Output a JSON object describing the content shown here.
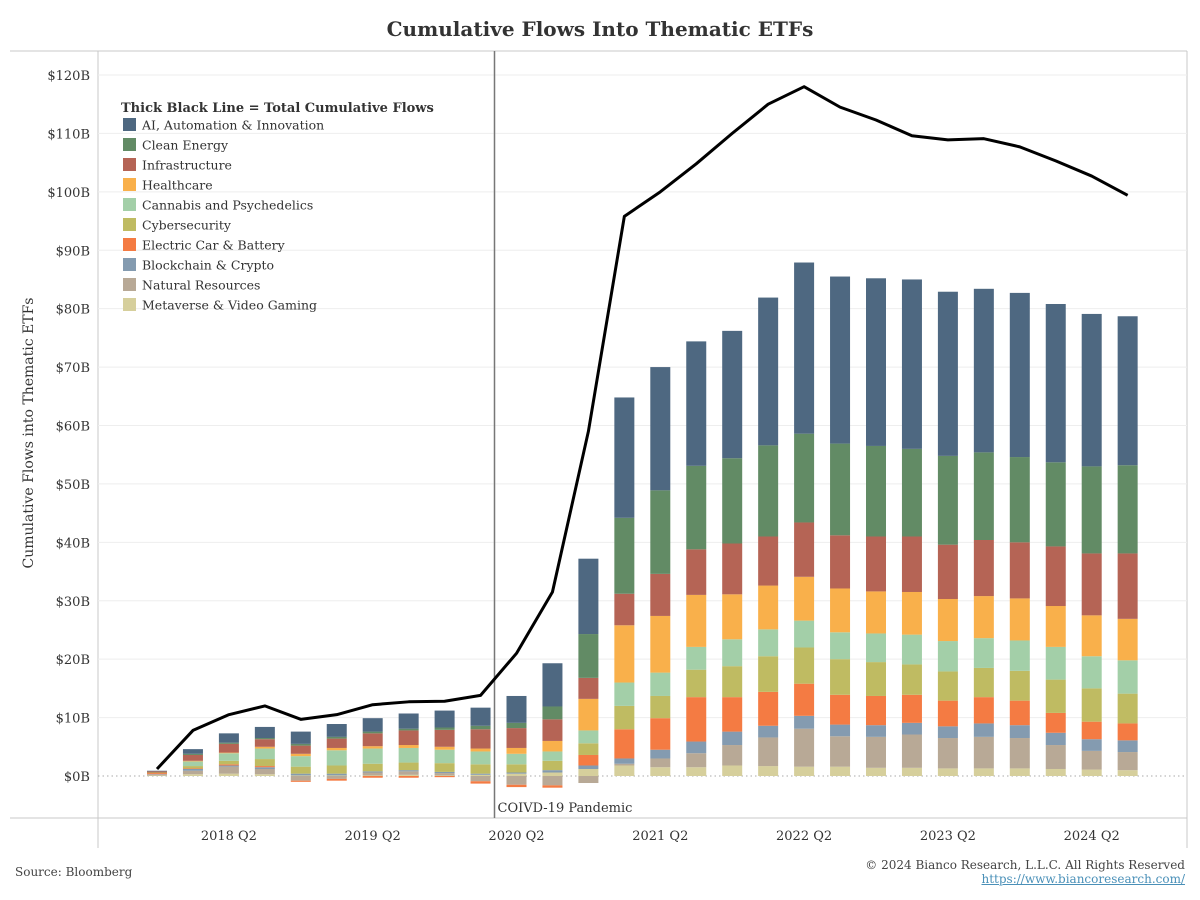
{
  "chart_data": {
    "type": "bar",
    "stacked": true,
    "title": "Cumulative Flows Into Thematic ETFs",
    "ylabel": "Cumulative Flows into Thematic ETFs",
    "xlabel": "",
    "ylim": [
      -7,
      120
    ],
    "yticks": [
      0,
      10,
      20,
      30,
      40,
      50,
      60,
      70,
      80,
      90,
      100,
      110,
      120
    ],
    "ytick_labels": [
      "$0B",
      "$10B",
      "$20B",
      "$30B",
      "$40B",
      "$50B",
      "$60B",
      "$70B",
      "$80B",
      "$90B",
      "$100B",
      "$110B",
      "$120B"
    ],
    "xtick_labels": [
      {
        "label": "2018 Q2",
        "index": 2
      },
      {
        "label": "2019 Q2",
        "index": 6
      },
      {
        "label": "2020 Q2",
        "index": 10
      },
      {
        "label": "2021 Q2",
        "index": 14
      },
      {
        "label": "2022 Q2",
        "index": 18
      },
      {
        "label": "2023 Q2",
        "index": 22
      },
      {
        "label": "2024 Q2",
        "index": 26
      }
    ],
    "categories": [
      "2017 Q4",
      "2018 Q1",
      "2018 Q2",
      "2018 Q3",
      "2018 Q4",
      "2019 Q1",
      "2019 Q2",
      "2019 Q3",
      "2019 Q4",
      "2020 Q1",
      "2020 Q2",
      "2020 Q3",
      "2020 Q4",
      "2021 Q1",
      "2021 Q2",
      "2021 Q3",
      "2021 Q4",
      "2022 Q1",
      "2022 Q2",
      "2022 Q3",
      "2022 Q4",
      "2023 Q1",
      "2023 Q2",
      "2023 Q3",
      "2023 Q4",
      "2024 Q1",
      "2024 Q2",
      "2024 Q3"
    ],
    "legend_title": "Thick Black Line = Total Cumulative Flows",
    "legend_position": "top-left",
    "series": [
      {
        "name": "Metaverse & Video Gaming",
        "color": "#d6cf9c",
        "values": [
          0.1,
          0.3,
          0.4,
          0.3,
          0.1,
          0.1,
          0.1,
          0.2,
          0.1,
          0.2,
          0.4,
          0.6,
          1.2,
          1.8,
          1.5,
          1.5,
          1.8,
          1.7,
          1.6,
          1.6,
          1.4,
          1.4,
          1.3,
          1.3,
          1.3,
          1.2,
          1.1,
          1.0
        ]
      },
      {
        "name": "Natural Resources",
        "color": "#b8a996",
        "values": [
          0.1,
          0.6,
          1.2,
          0.9,
          -0.8,
          -0.5,
          0.5,
          0.6,
          0.4,
          -0.9,
          -1.5,
          -1.6,
          -1.2,
          0.3,
          1.5,
          2.4,
          3.5,
          4.9,
          6.5,
          5.2,
          5.3,
          5.7,
          5.2,
          5.4,
          5.2,
          4.1,
          3.2,
          3.1
        ]
      },
      {
        "name": "Blockchain & Crypto",
        "color": "#849bb0",
        "values": [
          0.1,
          0.3,
          0.2,
          0.3,
          0.3,
          0.3,
          0.2,
          0.2,
          0.2,
          0.2,
          0.2,
          0.4,
          0.6,
          0.9,
          1.5,
          2.0,
          2.3,
          2.0,
          2.2,
          2.0,
          2.0,
          2.0,
          2.0,
          2.3,
          2.2,
          2.1,
          2.0,
          2.0
        ]
      },
      {
        "name": "Electric Car & Battery",
        "color": "#f47b43",
        "values": [
          0.2,
          0.1,
          0.2,
          0.2,
          -0.2,
          -0.3,
          -0.3,
          -0.3,
          -0.2,
          -0.4,
          -0.4,
          -0.4,
          1.8,
          5.0,
          5.4,
          7.6,
          5.9,
          5.8,
          5.5,
          5.1,
          5.0,
          4.8,
          4.4,
          4.5,
          4.2,
          3.4,
          3.0,
          2.9
        ]
      },
      {
        "name": "Cybersecurity",
        "color": "#bfbb62",
        "values": [
          0.1,
          0.4,
          0.6,
          1.2,
          1.2,
          1.4,
          1.3,
          1.3,
          1.5,
          1.6,
          1.4,
          1.6,
          2.0,
          4.0,
          3.8,
          4.7,
          5.3,
          6.1,
          6.2,
          6.1,
          5.8,
          5.2,
          5.0,
          5.0,
          5.1,
          5.7,
          5.7,
          5.1
        ]
      },
      {
        "name": "Cannabis and Psychedelics",
        "color": "#a3cfa8",
        "values": [
          0,
          0.8,
          1.3,
          1.8,
          1.8,
          2.6,
          2.6,
          2.5,
          2.3,
          2.2,
          1.8,
          1.6,
          2.2,
          4.0,
          4.0,
          3.9,
          4.6,
          4.6,
          4.6,
          4.6,
          4.9,
          5.1,
          5.2,
          5.1,
          5.2,
          5.6,
          5.5,
          5.7
        ]
      },
      {
        "name": "Healthcare",
        "color": "#f9b04b",
        "values": [
          0,
          0.1,
          0.1,
          0.3,
          0.4,
          0.4,
          0.4,
          0.5,
          0.5,
          0.5,
          1.0,
          1.8,
          5.4,
          9.8,
          9.7,
          8.9,
          7.7,
          7.5,
          7.5,
          7.5,
          7.2,
          7.3,
          7.2,
          7.2,
          7.2,
          7.0,
          7.0,
          7.1
        ]
      },
      {
        "name": "Infrastructure",
        "color": "#b56455",
        "values": [
          0.2,
          1.0,
          1.5,
          1.3,
          1.4,
          1.6,
          2.2,
          2.5,
          2.9,
          3.3,
          3.4,
          3.7,
          3.6,
          5.4,
          7.2,
          7.8,
          8.7,
          8.4,
          9.3,
          9.1,
          9.4,
          9.5,
          9.3,
          9.6,
          9.6,
          10.2,
          10.6,
          11.2
        ]
      },
      {
        "name": "Clean Energy",
        "color": "#628b65",
        "values": [
          0,
          0.2,
          0.2,
          0.2,
          0.3,
          0.3,
          0.3,
          0.3,
          0.4,
          0.6,
          0.9,
          2.2,
          7.5,
          13.0,
          14.3,
          14.3,
          14.6,
          15.6,
          15.2,
          15.7,
          15.5,
          15.0,
          15.2,
          15.0,
          14.6,
          14.4,
          14.9,
          15.1
        ]
      },
      {
        "name": "AI, Automation & Innovation",
        "color": "#4e6881",
        "values": [
          0.1,
          0.8,
          1.6,
          1.9,
          2.1,
          2.2,
          2.3,
          2.6,
          2.9,
          3.1,
          4.6,
          7.4,
          12.9,
          20.6,
          21.1,
          21.3,
          21.8,
          25.3,
          29.3,
          28.6,
          28.7,
          29.0,
          28.1,
          28.0,
          28.1,
          27.1,
          26.1,
          25.5
        ]
      }
    ],
    "line": {
      "name": "Total Cumulative Flows",
      "color": "#000000",
      "values": [
        1.2,
        7.8,
        10.5,
        12.0,
        9.7,
        10.5,
        12.2,
        12.7,
        12.8,
        13.8,
        21.0,
        31.5,
        59.0,
        95.8,
        100.0,
        104.8,
        110.0,
        115.0,
        118.0,
        114.5,
        112.3,
        109.6,
        108.9,
        109.1,
        107.7,
        105.3,
        102.7,
        99.4
      ]
    },
    "annotations": [
      {
        "text": "COIVD-19 Pandemic",
        "at": "2020 Q2"
      }
    ]
  },
  "footer": {
    "source": "Source: Bloomberg",
    "copyright": "© 2024 Bianco Research, L.L.C. All Rights Reserved",
    "url": "https://www.biancoresearch.com/"
  }
}
